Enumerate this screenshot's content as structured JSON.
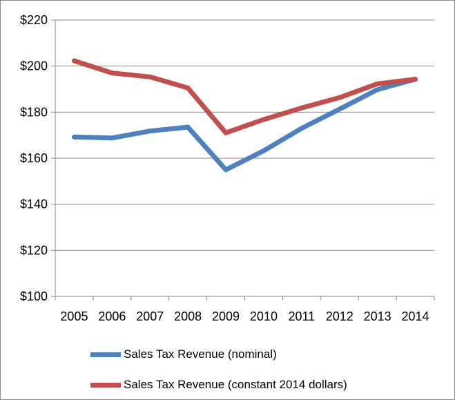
{
  "chart_data": {
    "type": "line",
    "title": "",
    "xlabel": "",
    "ylabel": "",
    "x": [
      "2005",
      "2006",
      "2007",
      "2008",
      "2009",
      "2010",
      "2011",
      "2012",
      "2013",
      "2014"
    ],
    "ylim": [
      100,
      220
    ],
    "y_ticks": [
      "$100",
      "$120",
      "$140",
      "$160",
      "$180",
      "$200",
      "$220"
    ],
    "y_tick_values": [
      100,
      120,
      140,
      160,
      180,
      200,
      220
    ],
    "grid": true,
    "legend_position": "bottom",
    "series": [
      {
        "name": "Sales Tax Revenue (nominal)",
        "color": "#4f81bd",
        "values": [
          169.2,
          168.8,
          171.8,
          173.5,
          155.0,
          163.2,
          173.0,
          181.3,
          189.8,
          194.3
        ]
      },
      {
        "name": "Sales Tax Revenue (constant 2014 dollars)",
        "color": "#c0504d",
        "values": [
          202.3,
          197.0,
          195.3,
          190.5,
          171.0,
          176.8,
          181.8,
          186.3,
          192.3,
          194.3
        ]
      }
    ]
  }
}
